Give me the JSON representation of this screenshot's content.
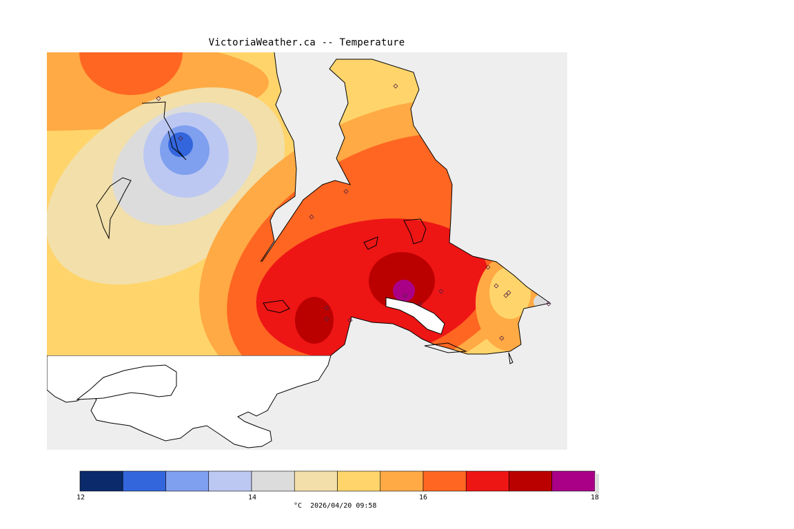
{
  "title": "VictoriaWeather.ca -- Temperature",
  "legend": {
    "ticks": [
      "12",
      "14",
      "16",
      "18"
    ],
    "unit": "°C",
    "timestamp": "2026/04/20 09:58",
    "colors": [
      "#0a2a6b",
      "#3366dd",
      "#7f9fef",
      "#bcc8f2",
      "#dcdcdc",
      "#f2dfaa",
      "#ffd56b",
      "#ffaa44",
      "#ff6622",
      "#ee1515",
      "#bb0000",
      "#aa0088"
    ]
  },
  "map": {
    "land_color": "#ffffff",
    "water_color": "#eeeeee",
    "station_marker": "diamond-icon"
  }
}
